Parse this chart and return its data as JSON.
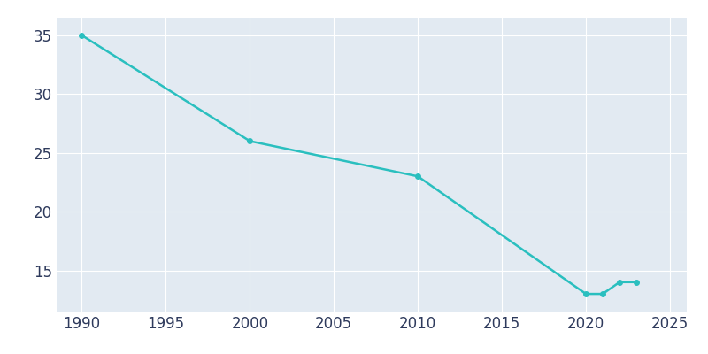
{
  "years": [
    1990,
    2000,
    2010,
    2020,
    2021,
    2022,
    2023
  ],
  "population": [
    35,
    26,
    23,
    13,
    13,
    14,
    14
  ],
  "line_color": "#2ABFBF",
  "marker_color": "#2ABFBF",
  "fig_bg_color": "#E8EEF4",
  "plot_bg_color": "#E2EAF2",
  "grid_color": "#FFFFFF",
  "tick_color": "#2E3A5C",
  "xlim": [
    1988.5,
    2026
  ],
  "ylim": [
    11.5,
    36.5
  ],
  "xticks": [
    1990,
    1995,
    2000,
    2005,
    2010,
    2015,
    2020,
    2025
  ],
  "yticks": [
    15,
    20,
    25,
    30,
    35
  ],
  "tick_fontsize": 12,
  "linewidth": 1.8,
  "markersize": 4
}
